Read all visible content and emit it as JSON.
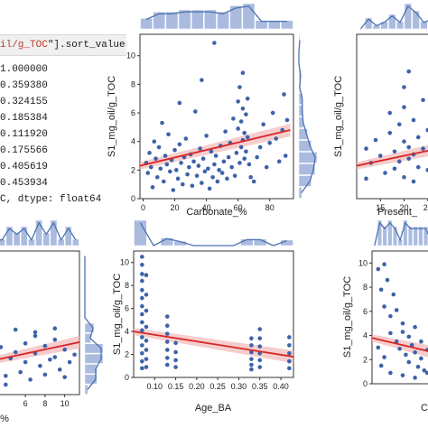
{
  "code_output": {
    "head_prefix": "il/g_TOC",
    "head_suffix": "\"].sort_values",
    "lines": [
      "1.000000",
      "0.359380",
      "0.324155",
      "0.185384",
      "0.111920",
      "0.175566",
      "0.405619",
      "0.453934"
    ],
    "dtype_line": "C, dtype: float64"
  },
  "colors": {
    "point": "#3d62a8",
    "regression": "#d62728",
    "ci_band": "#f2b8b8",
    "marginal_bar": "#aabbdf",
    "marginal_kde": "#4c72b0",
    "axis": "#333333",
    "plot_background": "#ffffff"
  },
  "chart_data": [
    {
      "type": "scatter",
      "panel": "carbonate",
      "xlabel": "Carbonate_%",
      "ylabel": "S1_mg_oil/g_TOC",
      "xlim": [
        -2,
        95
      ],
      "ylim": [
        0,
        11.5
      ],
      "xticks": [
        0,
        20,
        40,
        60,
        80
      ],
      "yticks": [
        0,
        2,
        4,
        6,
        8,
        10
      ],
      "regression": {
        "x0": -2,
        "y0": 2.3,
        "x1": 93,
        "y1": 4.8
      },
      "points": [
        [
          2,
          2.5
        ],
        [
          3,
          1.8
        ],
        [
          4,
          3.2
        ],
        [
          5,
          2.2
        ],
        [
          6,
          0.8
        ],
        [
          7,
          4.0
        ],
        [
          8,
          2.8
        ],
        [
          9,
          1.5
        ],
        [
          10,
          3.6
        ],
        [
          11,
          2.1
        ],
        [
          12,
          5.3
        ],
        [
          13,
          1.2
        ],
        [
          14,
          3.0
        ],
        [
          15,
          2.4
        ],
        [
          16,
          4.5
        ],
        [
          17,
          1.9
        ],
        [
          18,
          2.7
        ],
        [
          19,
          0.6
        ],
        [
          20,
          3.4
        ],
        [
          21,
          2.0
        ],
        [
          22,
          1.4
        ],
        [
          23,
          3.8
        ],
        [
          24,
          2.5
        ],
        [
          25,
          1.0
        ],
        [
          26,
          2.9
        ],
        [
          27,
          4.2
        ],
        [
          28,
          1.7
        ],
        [
          29,
          2.2
        ],
        [
          30,
          3.1
        ],
        [
          31,
          0.9
        ],
        [
          32,
          2.6
        ],
        [
          33,
          6.1
        ],
        [
          34,
          1.6
        ],
        [
          35,
          2.3
        ],
        [
          36,
          3.5
        ],
        [
          37,
          1.1
        ],
        [
          38,
          2.8
        ],
        [
          39,
          1.9
        ],
        [
          40,
          4.4
        ],
        [
          41,
          2.1
        ],
        [
          42,
          0.7
        ],
        [
          43,
          3.3
        ],
        [
          44,
          1.5
        ],
        [
          45,
          2.4
        ],
        [
          46,
          3.0
        ],
        [
          47,
          1.2
        ],
        [
          48,
          2.0
        ],
        [
          49,
          3.7
        ],
        [
          50,
          1.8
        ],
        [
          51,
          2.6
        ],
        [
          52,
          4.7
        ],
        [
          53,
          1.4
        ],
        [
          54,
          2.9
        ],
        [
          55,
          3.9
        ],
        [
          56,
          2.2
        ],
        [
          57,
          5.6
        ],
        [
          58,
          1.6
        ],
        [
          59,
          3.2
        ],
        [
          60,
          6.8
        ],
        [
          60,
          4.9
        ],
        [
          61,
          2.5
        ],
        [
          61,
          7.8
        ],
        [
          62,
          3.6
        ],
        [
          62,
          5.4
        ],
        [
          63,
          4.1
        ],
        [
          63,
          6.3
        ],
        [
          63,
          8.8
        ],
        [
          64,
          4.6
        ],
        [
          64,
          2.8
        ],
        [
          65,
          5.9
        ],
        [
          65,
          3.3
        ],
        [
          66,
          7.0
        ],
        [
          66,
          4.3
        ],
        [
          67,
          2.4
        ],
        [
          68,
          1.5
        ],
        [
          70,
          1.2
        ],
        [
          72,
          2.9
        ],
        [
          74,
          3.6
        ],
        [
          76,
          5.2
        ],
        [
          78,
          2.2
        ],
        [
          80,
          3.9
        ],
        [
          82,
          6.0
        ],
        [
          84,
          4.2
        ],
        [
          86,
          2.6
        ],
        [
          88,
          4.8
        ],
        [
          89,
          7.3
        ],
        [
          90,
          3.0
        ],
        [
          91,
          5.5
        ],
        [
          45,
          10.9
        ],
        [
          37,
          8.3
        ],
        [
          23,
          6.7
        ]
      ]
    },
    {
      "type": "scatter",
      "panel": "present_depth",
      "xlabel": "Present_",
      "ylabel": "S1_mg_oil/g_TOC",
      "xlim": [
        10,
        30
      ],
      "ylim": [
        0,
        11.5
      ],
      "xticks": [
        15,
        20,
        25
      ],
      "yticks": [
        0,
        2,
        4,
        6,
        8,
        10
      ],
      "regression": {
        "x0": 10,
        "y0": 2.3,
        "x1": 30,
        "y1": 3.7
      },
      "points": [
        [
          12,
          3.5
        ],
        [
          12,
          1.4
        ],
        [
          13,
          2.5
        ],
        [
          14,
          4.1
        ],
        [
          15,
          3.0
        ],
        [
          16,
          1.8
        ],
        [
          17,
          4.6
        ],
        [
          17,
          6.0
        ],
        [
          18,
          3.3
        ],
        [
          18,
          2.1
        ],
        [
          19,
          5.2
        ],
        [
          19,
          2.6
        ],
        [
          20,
          7.8
        ],
        [
          20,
          6.4
        ],
        [
          20,
          4.0
        ],
        [
          20,
          1.5
        ],
        [
          21,
          3.6
        ],
        [
          21,
          8.9
        ],
        [
          21,
          2.8
        ],
        [
          22,
          5.5
        ],
        [
          22,
          3.1
        ],
        [
          22,
          1.2
        ],
        [
          23,
          4.3
        ],
        [
          23,
          2.2
        ],
        [
          24,
          6.9
        ],
        [
          24,
          3.5
        ],
        [
          25,
          2.0
        ],
        [
          25,
          4.8
        ],
        [
          26,
          3.2
        ],
        [
          27,
          5.0
        ],
        [
          27,
          2.5
        ],
        [
          28,
          3.8
        ]
      ]
    },
    {
      "type": "scatter",
      "panel": "bottom_left",
      "xlabel": "%",
      "ylabel": "",
      "xlim": [
        2.5,
        11.5
      ],
      "ylim": [
        0,
        11.5
      ],
      "xticks": [
        6,
        8,
        10
      ],
      "yticks": [],
      "regression": {
        "x0": 2.5,
        "y0": 2.7,
        "x1": 11.5,
        "y1": 4.2
      },
      "points": [
        [
          3,
          2.2
        ],
        [
          3.5,
          3.8
        ],
        [
          4,
          1.5
        ],
        [
          4.5,
          2.9
        ],
        [
          5,
          3.4
        ],
        [
          5.5,
          1.8
        ],
        [
          6,
          4.1
        ],
        [
          6,
          2.6
        ],
        [
          6.5,
          1.2
        ],
        [
          7,
          3.3
        ],
        [
          7,
          4.7
        ],
        [
          7.5,
          2.3
        ],
        [
          8,
          3.9
        ],
        [
          8,
          1.6
        ],
        [
          8.5,
          2.8
        ],
        [
          9,
          4.4
        ],
        [
          9,
          3.0
        ],
        [
          9.5,
          2.0
        ],
        [
          10,
          3.6
        ],
        [
          10,
          1.4
        ],
        [
          10.5,
          2.6
        ],
        [
          11,
          3.2
        ],
        [
          4,
          0.8
        ],
        [
          5,
          5.2
        ],
        [
          7,
          5.0
        ],
        [
          9,
          5.3
        ]
      ]
    },
    {
      "type": "scatter",
      "panel": "age",
      "xlabel": "Age_BA",
      "ylabel": "S1_mg_oil/g_TOC",
      "xlim": [
        0.05,
        0.43
      ],
      "ylim": [
        0,
        11
      ],
      "xticks": [
        0.1,
        0.15,
        0.2,
        0.25,
        0.3,
        0.35,
        0.4
      ],
      "yticks": [
        0,
        2,
        4,
        6,
        8,
        10
      ],
      "regression": {
        "x0": 0.05,
        "y0": 4.0,
        "x1": 0.43,
        "y1": 1.8
      },
      "points": [
        [
          0.07,
          10.5
        ],
        [
          0.07,
          9.8
        ],
        [
          0.07,
          9.0
        ],
        [
          0.07,
          8.4
        ],
        [
          0.07,
          7.6
        ],
        [
          0.07,
          6.9
        ],
        [
          0.07,
          6.2
        ],
        [
          0.07,
          5.5
        ],
        [
          0.07,
          4.8
        ],
        [
          0.07,
          4.1
        ],
        [
          0.07,
          3.5
        ],
        [
          0.07,
          2.8
        ],
        [
          0.07,
          2.1
        ],
        [
          0.07,
          1.4
        ],
        [
          0.07,
          0.8
        ],
        [
          0.08,
          8.9
        ],
        [
          0.08,
          7.2
        ],
        [
          0.08,
          5.8
        ],
        [
          0.08,
          4.4
        ],
        [
          0.08,
          3.2
        ],
        [
          0.08,
          2.4
        ],
        [
          0.08,
          1.6
        ],
        [
          0.08,
          0.9
        ],
        [
          0.13,
          5.3
        ],
        [
          0.13,
          4.5
        ],
        [
          0.13,
          3.8
        ],
        [
          0.13,
          3.1
        ],
        [
          0.13,
          2.4
        ],
        [
          0.13,
          1.7
        ],
        [
          0.13,
          1.1
        ],
        [
          0.15,
          3.0
        ],
        [
          0.15,
          2.2
        ],
        [
          0.15,
          1.5
        ],
        [
          0.15,
          0.9
        ],
        [
          0.33,
          3.4
        ],
        [
          0.33,
          2.8
        ],
        [
          0.33,
          2.2
        ],
        [
          0.33,
          1.6
        ],
        [
          0.33,
          1.1
        ],
        [
          0.33,
          0.7
        ],
        [
          0.35,
          4.2
        ],
        [
          0.35,
          3.4
        ],
        [
          0.35,
          2.7
        ],
        [
          0.35,
          2.1
        ],
        [
          0.35,
          1.5
        ],
        [
          0.35,
          0.9
        ],
        [
          0.42,
          3.5
        ],
        [
          0.42,
          2.8
        ],
        [
          0.42,
          2.1
        ],
        [
          0.42,
          1.4
        ],
        [
          0.42,
          0.8
        ]
      ]
    },
    {
      "type": "scatter",
      "panel": "bottom_right",
      "xlabel": "C",
      "ylabel": "S1_mg_oil/g_TOC",
      "xlim": [
        0,
        10
      ],
      "ylim": [
        0,
        11
      ],
      "xticks": [],
      "yticks": [
        0,
        2,
        4,
        6,
        8,
        10
      ],
      "regression": {
        "x0": 0,
        "y0": 3.8,
        "x1": 10,
        "y1": 2.6
      },
      "points": [
        [
          1,
          9.5
        ],
        [
          1.5,
          7.8
        ],
        [
          2,
          9.9
        ],
        [
          2,
          6.4
        ],
        [
          2.5,
          8.6
        ],
        [
          3,
          5.6
        ],
        [
          3,
          4.2
        ],
        [
          3.5,
          7.4
        ],
        [
          4,
          3.5
        ],
        [
          4,
          6.1
        ],
        [
          4.5,
          2.9
        ],
        [
          5,
          5.0
        ],
        [
          5,
          4.3
        ],
        [
          5.5,
          2.4
        ],
        [
          6,
          3.9
        ],
        [
          6,
          1.8
        ],
        [
          6.5,
          3.2
        ],
        [
          7,
          4.7
        ],
        [
          7,
          2.6
        ],
        [
          7.5,
          1.4
        ],
        [
          8,
          3.5
        ],
        [
          8,
          2.1
        ],
        [
          8.5,
          1.1
        ],
        [
          9,
          2.8
        ],
        [
          9.5,
          1.7
        ],
        [
          1,
          3.0
        ],
        [
          1.5,
          1.5
        ],
        [
          2,
          2.2
        ],
        [
          3,
          0.9
        ],
        [
          5,
          0.7
        ],
        [
          7,
          0.5
        ],
        [
          9,
          0.9
        ]
      ]
    }
  ]
}
